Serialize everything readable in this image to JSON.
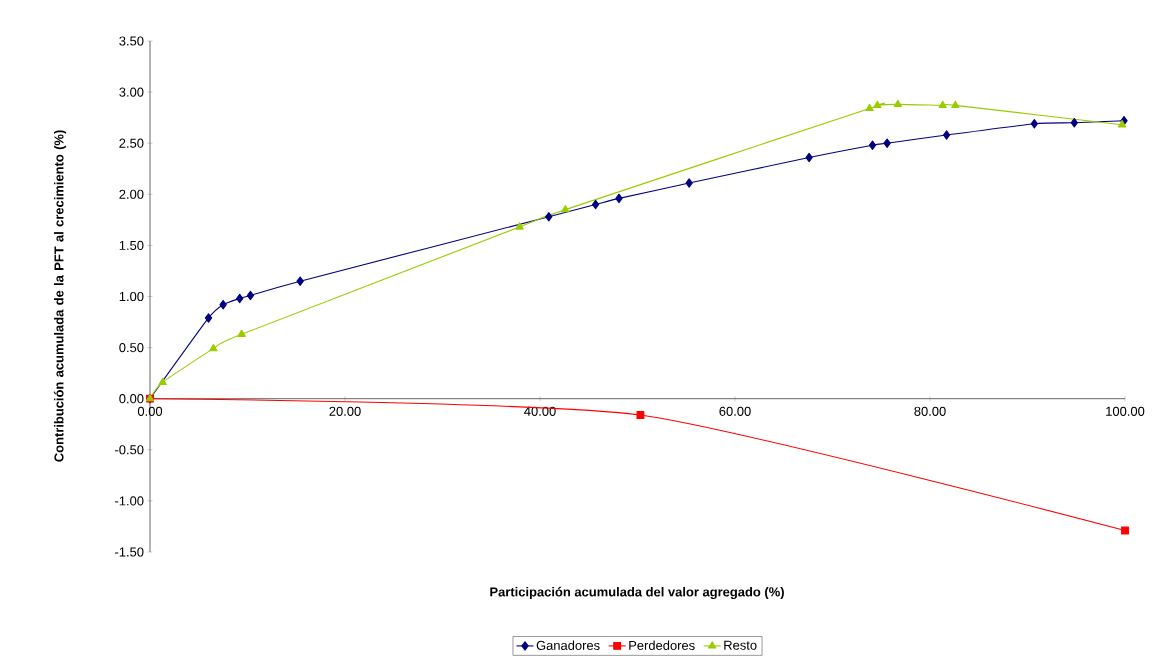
{
  "chart_data": {
    "type": "line",
    "xlabel": "Participación acumulada del valor agregado (%)",
    "ylabel": "Contribución acumulada de la PFT al crecimiento (%)",
    "xlim": [
      0,
      100
    ],
    "ylim": [
      -1.5,
      3.5
    ],
    "xticks": [
      {
        "value": 0,
        "label": "0.00"
      },
      {
        "value": 20,
        "label": "20.00"
      },
      {
        "value": 40,
        "label": "40.00"
      },
      {
        "value": 60,
        "label": "60.00"
      },
      {
        "value": 80,
        "label": "80.00"
      },
      {
        "value": 100,
        "label": "100.00"
      }
    ],
    "yticks": [
      {
        "value": -1.5,
        "label": "-1.50"
      },
      {
        "value": -1,
        "label": "-1.00"
      },
      {
        "value": -0.5,
        "label": "-0.50"
      },
      {
        "value": 0,
        "label": "0.00"
      },
      {
        "value": 0.5,
        "label": "0.50"
      },
      {
        "value": 1,
        "label": "1.00"
      },
      {
        "value": 1.5,
        "label": "1.50"
      },
      {
        "value": 2,
        "label": "2.00"
      },
      {
        "value": 2.5,
        "label": "2.50"
      },
      {
        "value": 3,
        "label": "3.00"
      },
      {
        "value": 3.5,
        "label": "3.50"
      }
    ],
    "grid": false,
    "legend": "bottom",
    "series": [
      {
        "name": "Ganadores",
        "color": "#000080",
        "marker": "diamond",
        "x": [
          0,
          6.0,
          7.5,
          9.2,
          10.3,
          15.4,
          40.9,
          45.7,
          48.1,
          55.3,
          67.6,
          74.1,
          75.6,
          81.7,
          90.7,
          94.8,
          99.9
        ],
        "values": [
          0,
          0.79,
          0.92,
          0.98,
          1.01,
          1.15,
          1.78,
          1.9,
          1.96,
          2.11,
          2.36,
          2.48,
          2.5,
          2.58,
          2.69,
          2.7,
          2.72
        ]
      },
      {
        "name": "Perdedores",
        "color": "#ff0000",
        "marker": "square",
        "x": [
          0,
          50.3,
          100
        ],
        "values": [
          0,
          -0.16,
          -1.29
        ]
      },
      {
        "name": "Resto",
        "color": "#99cc00",
        "marker": "triangle",
        "x": [
          0,
          1.3,
          6.5,
          9.4,
          37.9,
          42.6,
          73.8,
          74.6,
          76.7,
          81.3,
          82.6,
          99.7
        ],
        "values": [
          0,
          0.16,
          0.49,
          0.63,
          1.68,
          1.85,
          2.84,
          2.87,
          2.88,
          2.87,
          2.87,
          2.68
        ]
      }
    ]
  }
}
